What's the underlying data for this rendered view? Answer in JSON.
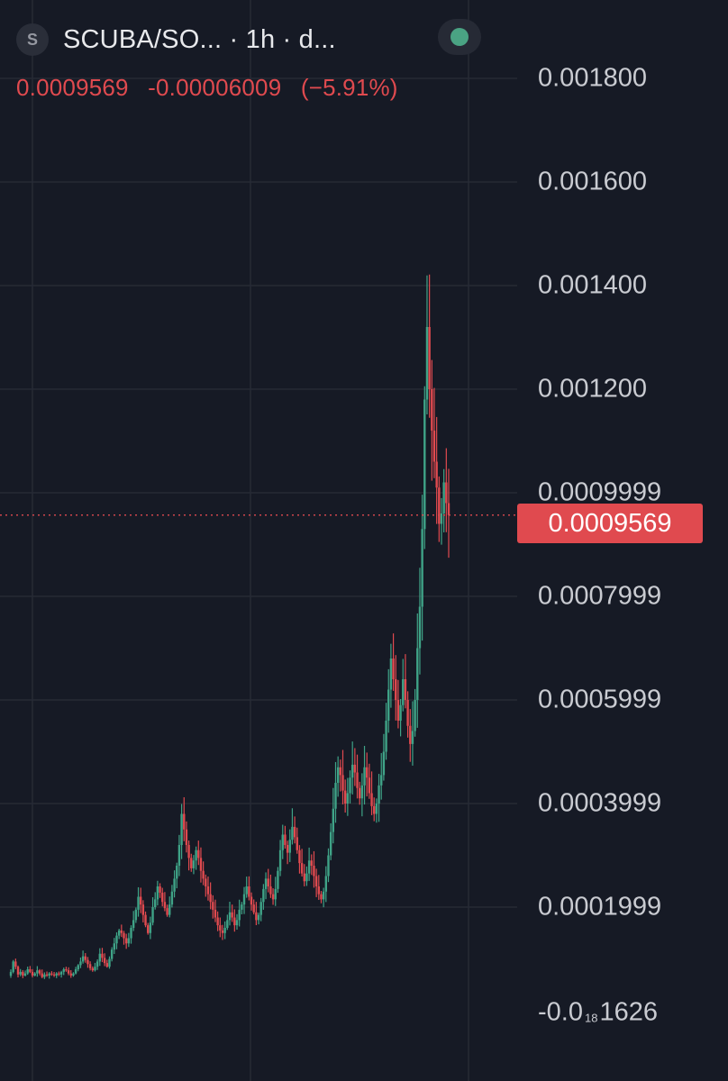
{
  "header": {
    "symbol_logo": "S",
    "title": "SCUBA/SO...  · 1h · d...",
    "status_color": "#4aa383"
  },
  "legend": {
    "price": "0.0009569",
    "change": "-0.00006009",
    "change_pct": "(−5.91%)"
  },
  "last_price_tag": "0.0009569",
  "y_axis_labels": [
    {
      "text": "0.001800",
      "value": 0.0018
    },
    {
      "text": "0.001600",
      "value": 0.0016
    },
    {
      "text": "0.001400",
      "value": 0.0014
    },
    {
      "text": "0.001200",
      "value": 0.0012
    },
    {
      "text": "0.0009999",
      "value": 0.001
    },
    {
      "text": "0.0007999",
      "value": 0.0008
    },
    {
      "text": "0.0005999",
      "value": 0.0006
    },
    {
      "text": "0.0003999",
      "value": 0.0004
    },
    {
      "text": "0.0001999",
      "value": 0.0002
    }
  ],
  "y_axis_bottom_label": {
    "prefix": "-0.0",
    "sub": "18",
    "suffix": "1626"
  },
  "colors": {
    "background": "#161a25",
    "grid": "#262a35",
    "up": "#3fa387",
    "down": "#e04a4f"
  },
  "chart_data": {
    "type": "candlestick",
    "title": "",
    "xlabel": "",
    "ylabel": "",
    "ylim": [
      0,
      0.0019
    ],
    "grid": true,
    "last_price": 0.0009569,
    "closes": [
      7.5e-05,
      9.5e-05,
      8.5e-05,
      7e-05,
      7.5e-05,
      6.8e-05,
      7.2e-05,
      8e-05,
      7.5e-05,
      6.8e-05,
      7.2e-05,
      7.8e-05,
      7.2e-05,
      6.5e-05,
      7e-05,
      6.8e-05,
      7.2e-05,
      7e-05,
      6.8e-05,
      7.2e-05,
      7e-05,
      7.5e-05,
      8e-05,
      7.8e-05,
      7.2e-05,
      6.8e-05,
      7.2e-05,
      8e-05,
      8.8e-05,
      9.5e-05,
      0.000105,
      9.8e-05,
      9e-05,
      8.2e-05,
      7.8e-05,
      8.5e-05,
      9.5e-05,
      0.00011,
      0.000102,
      9.2e-05,
      8.5e-05,
      0.0001,
      0.000118,
      0.00013,
      0.000145,
      0.000155,
      0.00015,
      0.00014,
      0.00013,
      0.00014,
      0.00016,
      0.000175,
      0.000195,
      0.00022,
      0.000205,
      0.000185,
      0.000165,
      0.00015,
      0.00017,
      0.0002,
      0.000215,
      0.00024,
      0.000228,
      0.00021,
      0.000198,
      0.000185,
      0.000205,
      0.00023,
      0.000255,
      0.00028,
      0.00032,
      0.00038,
      0.00035,
      0.00032,
      0.000295,
      0.000275,
      0.00029,
      0.00031,
      0.000295,
      0.00027,
      0.000255,
      0.00024,
      0.000225,
      0.00021,
      0.000195,
      0.00018,
      0.000165,
      0.000155,
      0.00015,
      0.00016,
      0.000175,
      0.00019,
      0.00018,
      0.000165,
      0.000175,
      0.000195,
      0.000205,
      0.000225,
      0.00024,
      0.00022,
      0.000205,
      0.00019,
      0.000175,
      0.000185,
      0.00021,
      0.000235,
      0.000255,
      0.00024,
      0.000225,
      0.000215,
      0.000235,
      0.00027,
      0.00031,
      0.00034,
      0.00032,
      0.000305,
      0.00033,
      0.000355,
      0.000335,
      0.00031,
      0.000285,
      0.000265,
      0.00025,
      0.000265,
      0.00029,
      0.00028,
      0.00026,
      0.00024,
      0.000225,
      0.000215,
      0.00023,
      0.00026,
      0.0003,
      0.000345,
      0.00039,
      0.00044,
      0.00047,
      0.000455,
      0.000425,
      0.0004,
      0.00042,
      0.00045,
      0.000475,
      0.00046,
      0.00043,
      0.00041,
      0.000435,
      0.00047,
      0.00045,
      0.00042,
      0.000395,
      0.00038,
      0.0004,
      0.000435,
      0.000455,
      0.0005,
      0.00056,
      0.00062,
      0.00068,
      0.00064,
      0.0006,
      0.00056,
      0.00059,
      0.00064,
      0.0006,
      0.00055,
      0.000515,
      0.00054,
      0.0006,
      0.0007,
      0.00078,
      0.00093,
      0.00118,
      0.00132,
      0.0012,
      0.00112,
      0.00106,
      0.00101,
      0.00094,
      0.00096,
      0.00102,
      0.00098,
      0.0009569
    ]
  }
}
